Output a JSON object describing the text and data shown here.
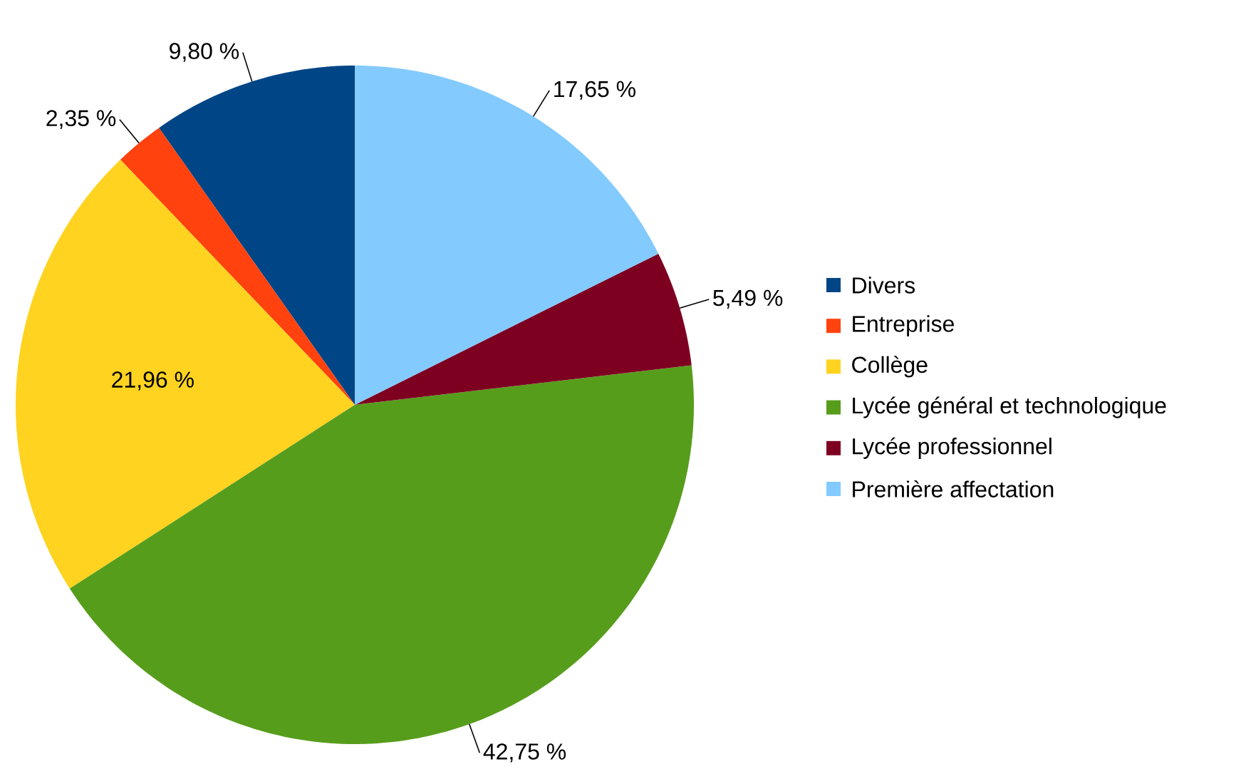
{
  "chart_data": {
    "type": "pie",
    "categories": [
      "Divers",
      "Entreprise",
      "Collège",
      "Lycée général et technologique",
      "Lycée professionnel",
      "Première affectation"
    ],
    "values": [
      9.8,
      2.35,
      21.96,
      42.75,
      5.49,
      17.65
    ],
    "colors": [
      "#004586",
      "#ff420e",
      "#ffd320",
      "#579d1c",
      "#7e0021",
      "#83caff"
    ],
    "value_labels": [
      "9,80 %",
      "2,35 %",
      "21,96 %",
      "42,75 %",
      "5,49 %",
      "17,65 %"
    ],
    "legend": "right"
  }
}
